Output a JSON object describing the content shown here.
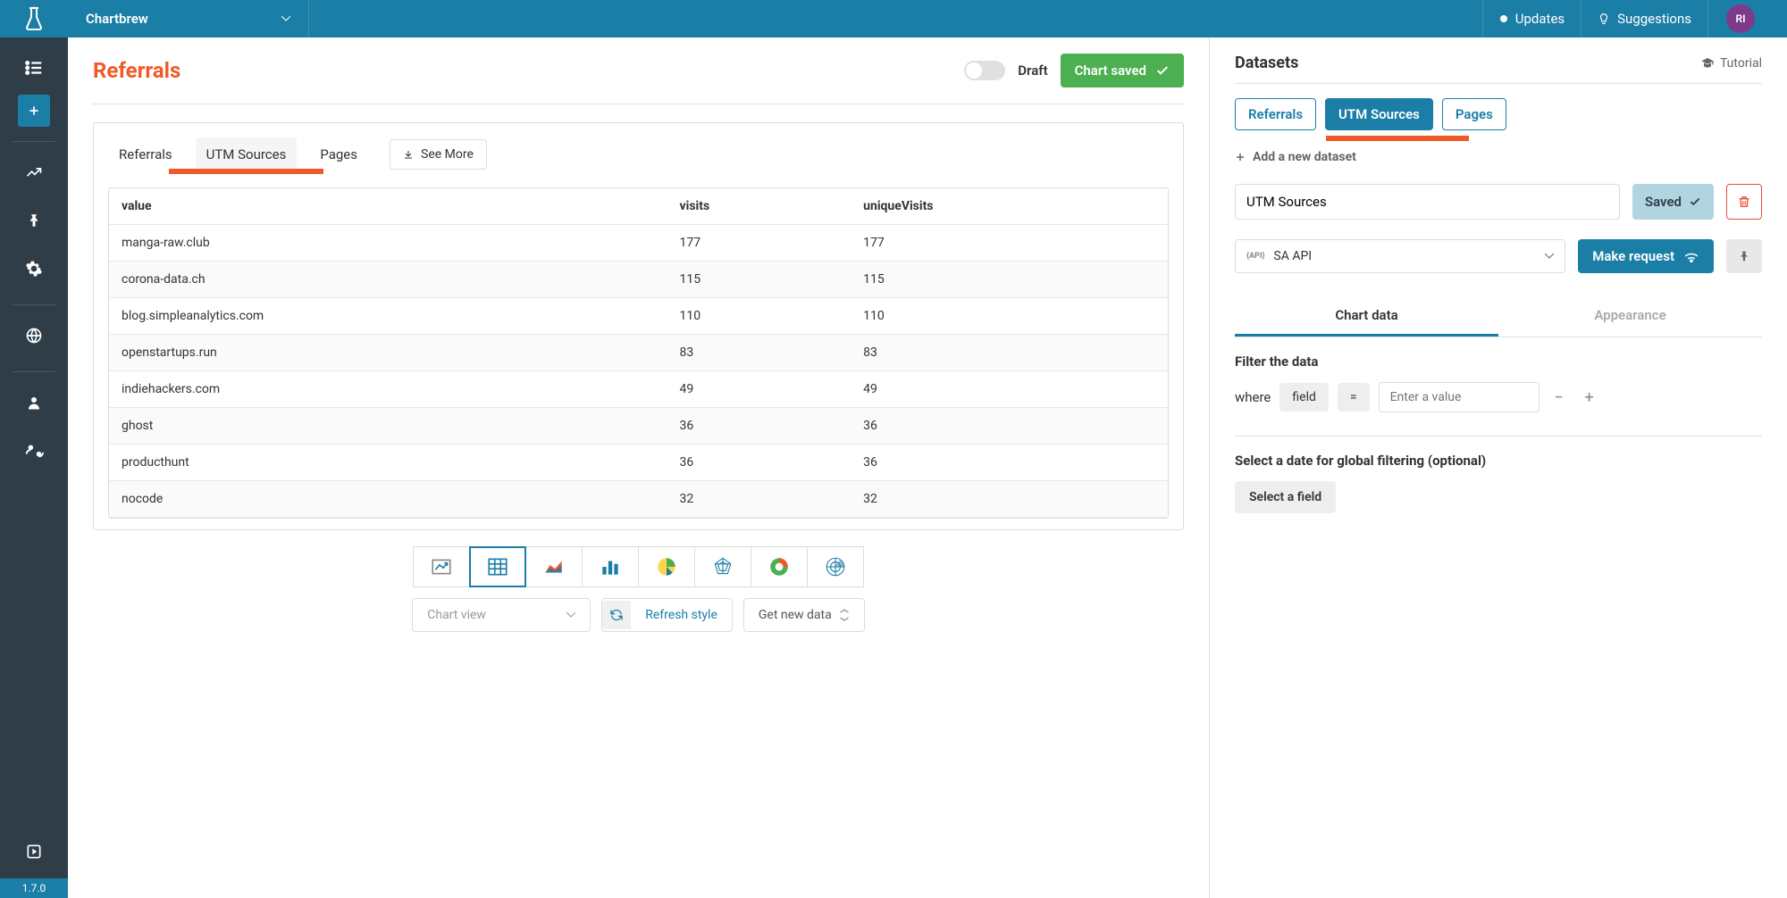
{
  "topbar": {
    "team_name": "Chartbrew",
    "updates": "Updates",
    "suggestions": "Suggestions",
    "avatar_initials": "RI"
  },
  "sidebar": {
    "version": "1.7.0"
  },
  "chart": {
    "title": "Referrals",
    "draft_label": "Draft",
    "saved_label": "Chart saved",
    "tabs": [
      "Referrals",
      "UTM Sources",
      "Pages"
    ],
    "active_tab": 1,
    "see_more": "See More",
    "table": {
      "columns": [
        "value",
        "visits",
        "uniqueVisits"
      ],
      "rows": [
        [
          "manga-raw.club",
          "177",
          "177"
        ],
        [
          "corona-data.ch",
          "115",
          "115"
        ],
        [
          "blog.simpleanalytics.com",
          "110",
          "110"
        ],
        [
          "openstartups.run",
          "83",
          "83"
        ],
        [
          "indiehackers.com",
          "49",
          "49"
        ],
        [
          "ghost",
          "36",
          "36"
        ],
        [
          "producthunt",
          "36",
          "36"
        ],
        [
          "nocode",
          "32",
          "32"
        ]
      ]
    },
    "chart_types": [
      "kpi",
      "table",
      "area",
      "bar",
      "pie",
      "radar",
      "doughnut",
      "polar"
    ],
    "active_chart_type": 1,
    "chart_view_placeholder": "Chart view",
    "refresh_style": "Refresh style",
    "get_new_data": "Get new data"
  },
  "datasets": {
    "title": "Datasets",
    "tutorial": "Tutorial",
    "tabs": [
      "Referrals",
      "UTM Sources",
      "Pages"
    ],
    "active_tab": 1,
    "add_new": "Add a new dataset",
    "name_value": "UTM Sources",
    "saved_label": "Saved",
    "api_select": "SA API",
    "api_badge": "{API}",
    "make_request": "Make request",
    "sub_tabs": [
      "Chart data",
      "Appearance"
    ],
    "active_sub_tab": 0,
    "filter_label": "Filter the data",
    "where_label": "where",
    "field_label": "field",
    "equals_label": "=",
    "filter_placeholder": "Enter a value",
    "date_label": "Select a date for global filtering (optional)",
    "select_field": "Select a field"
  },
  "colors": {
    "primary": "#1b7ea6",
    "sidebar": "#2e3d48",
    "accent": "#f05a28",
    "success": "#4caf50"
  }
}
